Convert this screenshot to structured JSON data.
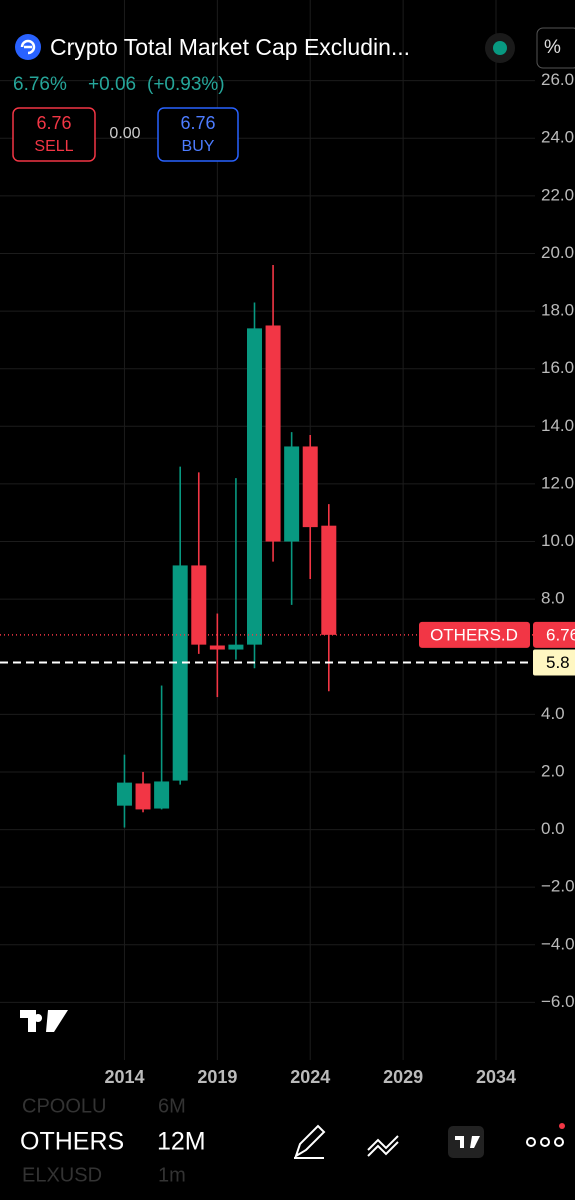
{
  "header": {
    "title": "Crypto Total Market Cap Excludin...",
    "price": "6.76%",
    "change": "+0.06",
    "change_pct": "(+0.93%)",
    "sell_price": "6.76",
    "sell": "SELL",
    "spread": "0.00",
    "buy_price": "6.76",
    "buy": "BUY",
    "percent_button": "%"
  },
  "chart_data": {
    "type": "candlestick",
    "x": [
      2014,
      2015,
      2016,
      2017,
      2018,
      2019,
      2020,
      2021,
      2022,
      2023,
      2024,
      2025
    ],
    "series": [
      {
        "name": "OTHERS.D",
        "up_color": "#089981",
        "down_color": "#f23645",
        "open": [
          0.83,
          1.6,
          0.73,
          1.7,
          9.17,
          6.39,
          6.25,
          6.42,
          17.5,
          10.0,
          13.3,
          10.55
        ],
        "high": [
          2.6,
          2.0,
          5.0,
          12.6,
          12.4,
          7.5,
          12.2,
          18.3,
          19.6,
          13.8,
          13.7,
          11.3
        ],
        "low": [
          0.07,
          0.6,
          0.7,
          1.56,
          6.1,
          4.6,
          5.9,
          5.6,
          9.3,
          7.8,
          8.7,
          4.8
        ],
        "close": [
          1.63,
          0.7,
          1.67,
          9.17,
          6.42,
          6.25,
          6.42,
          17.4,
          10.0,
          13.3,
          10.5,
          6.76
        ]
      }
    ],
    "last_price": 6.76,
    "horizontal_line": 5.8,
    "xlim": [
      2007.3,
      2036.1
    ],
    "xticks": [
      2014,
      2019,
      2024,
      2029,
      2034
    ],
    "ylim": [
      -8,
      28.8
    ],
    "yticks": [
      {
        "value": 26,
        "label": "26.0"
      },
      {
        "value": 24,
        "label": "24.0"
      },
      {
        "value": 22,
        "label": "22.0"
      },
      {
        "value": 20,
        "label": "20.0"
      },
      {
        "value": 18,
        "label": "18.0"
      },
      {
        "value": 16,
        "label": "16.0"
      },
      {
        "value": 14,
        "label": "14.0"
      },
      {
        "value": 12,
        "label": "12.0"
      },
      {
        "value": 10,
        "label": "10.0"
      },
      {
        "value": 8,
        "label": "8.0"
      },
      {
        "value": 4,
        "label": "4.0"
      },
      {
        "value": 2,
        "label": "2.0"
      },
      {
        "value": 0,
        "label": "0.0"
      },
      {
        "value": -2,
        "label": "−2.0"
      },
      {
        "value": -4,
        "label": "−4.0"
      },
      {
        "value": -6,
        "label": "−6.0"
      }
    ],
    "grid": true
  },
  "bottom_bar": {
    "prev_symbol": "CPOOLU",
    "prev_interval": "6M",
    "symbol": "OTHERS",
    "interval": "12M",
    "next_symbol": "ELXUSD",
    "next_interval": "1m"
  }
}
